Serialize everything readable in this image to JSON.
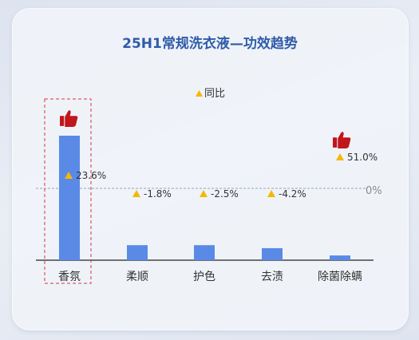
{
  "chart_data": {
    "type": "bar",
    "title": "25H1常规洗衣液—功效趋势",
    "legend": [
      {
        "marker": "triangle",
        "label": "同比",
        "color": "#f5b800"
      }
    ],
    "categories": [
      "香氛",
      "柔顺",
      "护色",
      "去渍",
      "除菌除螨"
    ],
    "values": [
      29,
      3.5,
      3.5,
      2.8,
      1.1
    ],
    "yoy": [
      23.6,
      -1.8,
      -2.5,
      -4.2,
      51.0
    ],
    "yoy_labels": [
      "23.6%",
      "-1.8%",
      "-2.5%",
      "-4.2%",
      "51.0%"
    ],
    "zero_line_label": "0%",
    "highlight_category": "香氛",
    "thumbs_up_categories": [
      "香氛",
      "除菌除螨"
    ],
    "ylim": [
      0,
      32
    ],
    "grid": false,
    "colors": {
      "bar": "#5a8ae6",
      "marker": "#f5b800",
      "thumb": "#c0161c",
      "highlight_border": "#d9363e",
      "zero_line": "#9aa3b5",
      "title": "#2f5ba8"
    }
  }
}
